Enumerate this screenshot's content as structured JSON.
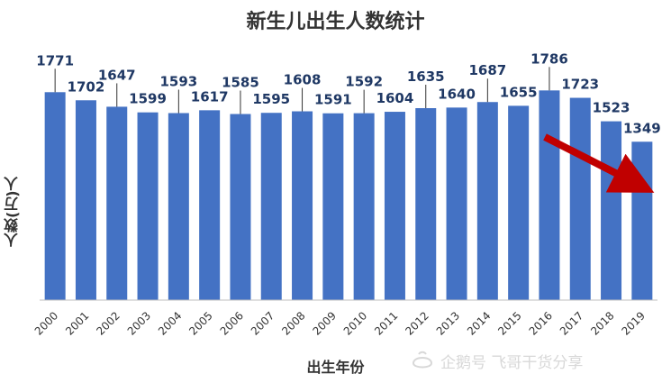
{
  "chart_data": {
    "type": "bar",
    "title": "新生儿出生人数统计",
    "xlabel": "出生年份",
    "ylabel": "人数(万)人",
    "categories": [
      "2000",
      "2001",
      "2002",
      "2003",
      "2004",
      "2005",
      "2006",
      "2007",
      "2008",
      "2009",
      "2010",
      "2011",
      "2012",
      "2013",
      "2014",
      "2015",
      "2016",
      "2017",
      "2018",
      "2019"
    ],
    "values": [
      1771,
      1702,
      1647,
      1599,
      1593,
      1617,
      1585,
      1595,
      1608,
      1591,
      1592,
      1604,
      1635,
      1640,
      1687,
      1655,
      1786,
      1723,
      1523,
      1349
    ],
    "ylim": [
      0,
      1850
    ],
    "grid": false,
    "legend": "none",
    "bar_color": "#4472C4",
    "arrow_color": "#C00000"
  },
  "watermark": {
    "text": "企鹅号 飞哥干货分享"
  }
}
